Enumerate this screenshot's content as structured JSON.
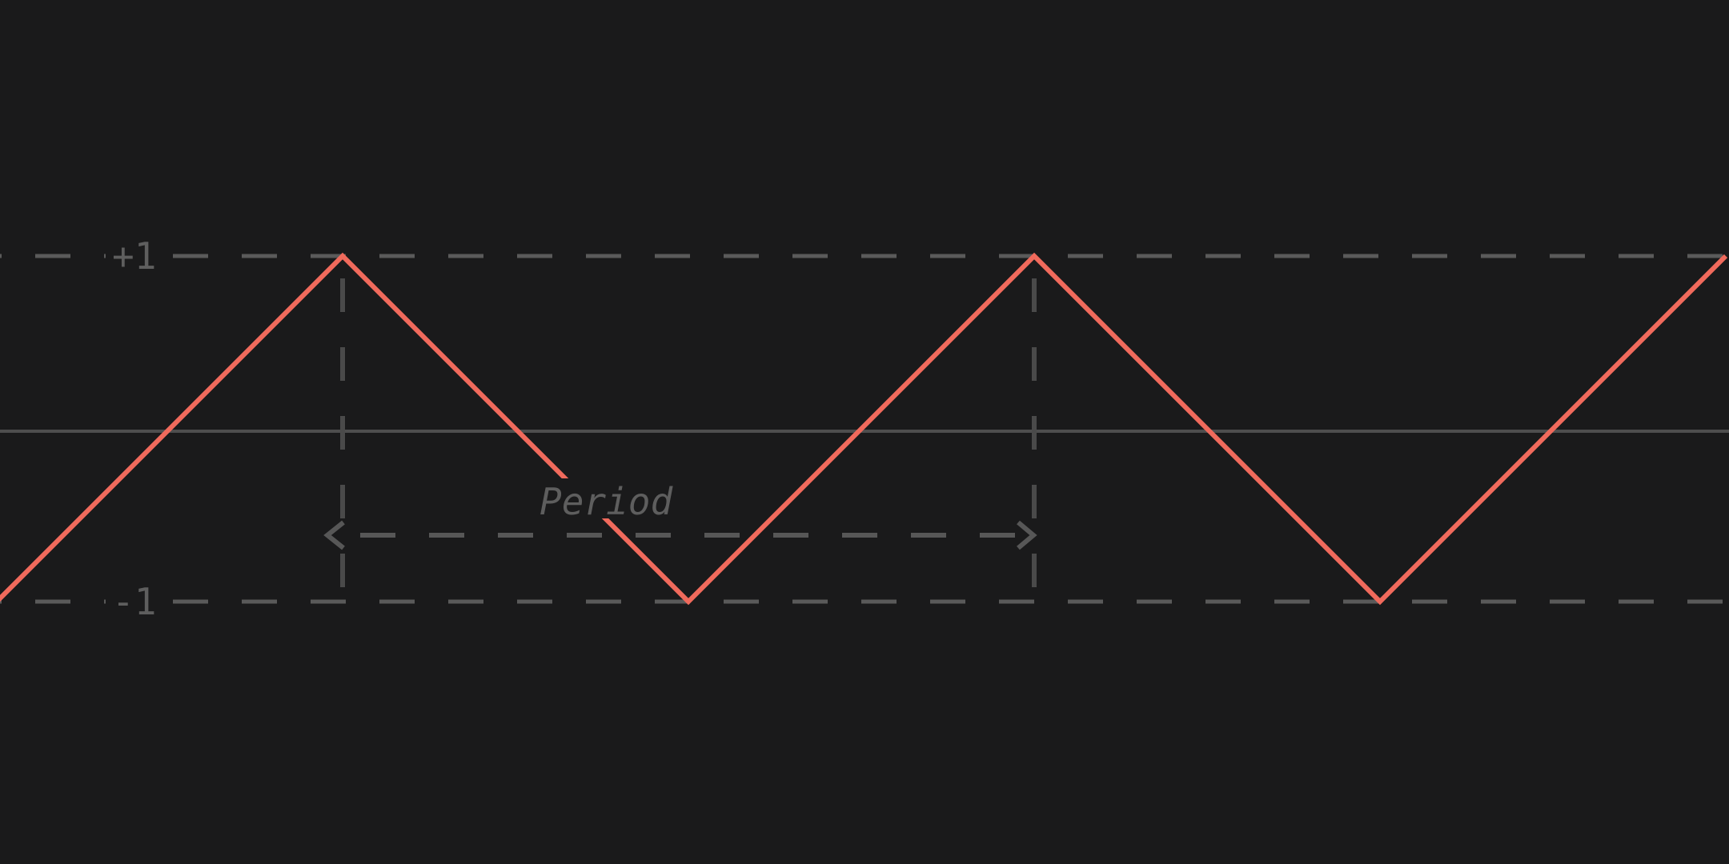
{
  "diagram": {
    "labels": {
      "max_label": "+1",
      "min_label": "-1",
      "period_label": "Period"
    },
    "wave": {
      "shape": "triangle",
      "amplitude_max": 1,
      "amplitude_min": -1,
      "color": "#f06a5c",
      "vertices": [
        {
          "phase": -0.5,
          "value": -1
        },
        {
          "phase": 0,
          "value": 1
        },
        {
          "phase": 0.5,
          "value": -1
        },
        {
          "phase": 1,
          "value": 1
        },
        {
          "phase": 1.5,
          "value": -1
        },
        {
          "phase": 2,
          "value": 1
        }
      ]
    },
    "period": {
      "start_phase": 0,
      "end_phase": 1
    },
    "colors": {
      "background": "#1a1a1b",
      "guides": "#5a5a5a",
      "wave": "#f06a5c"
    }
  }
}
